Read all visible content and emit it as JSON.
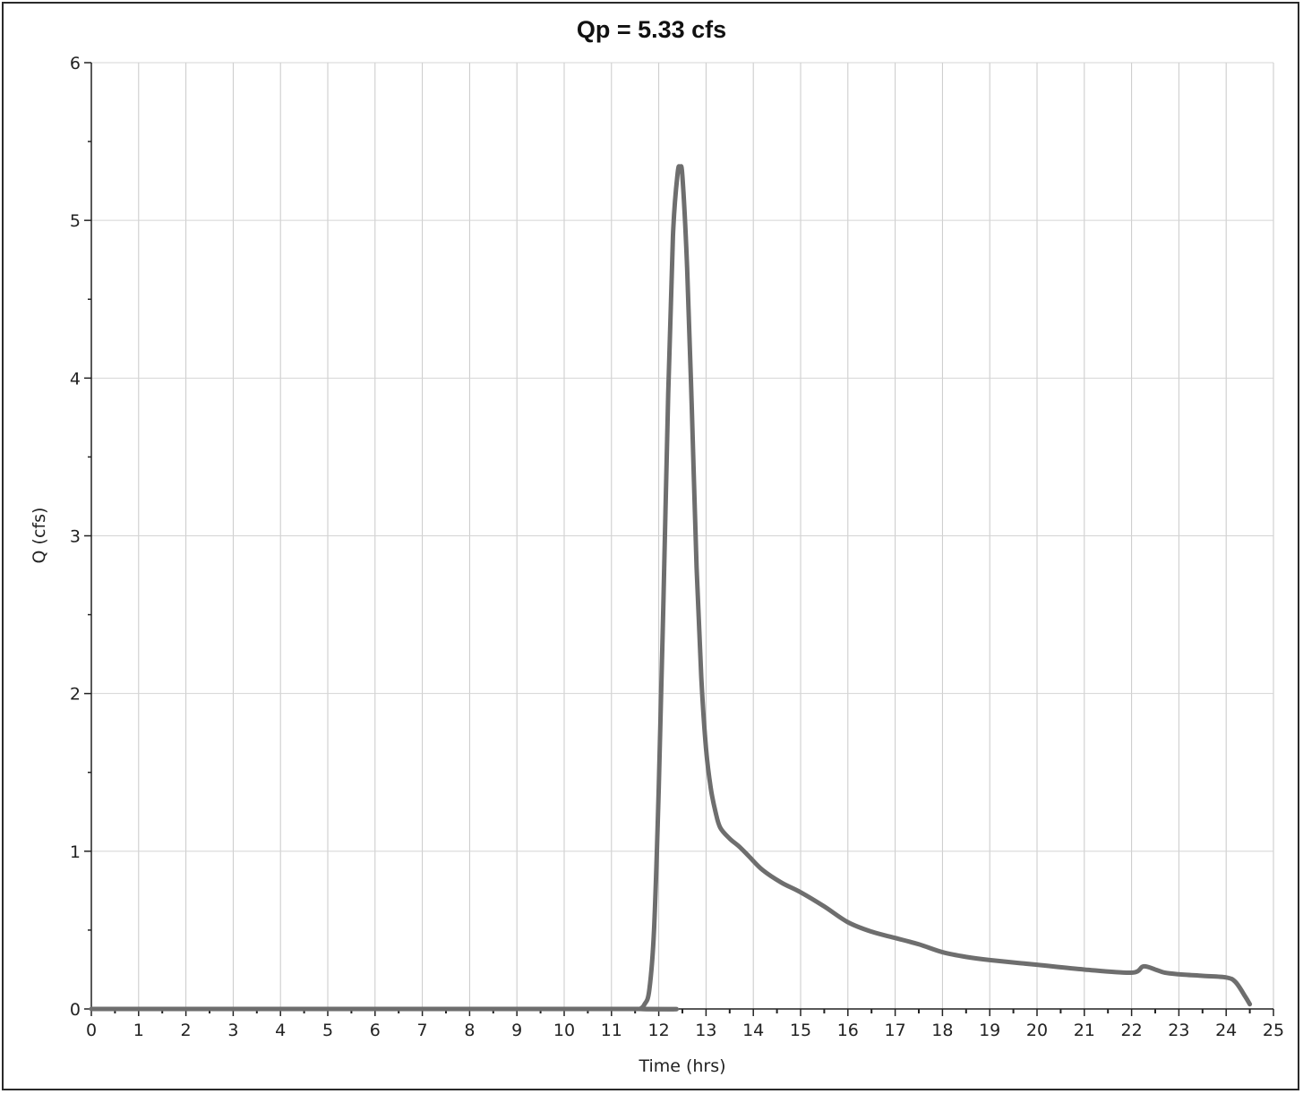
{
  "chart_data": {
    "type": "line",
    "title": "Qp = 5.33 cfs",
    "xlabel": "Time (hrs)",
    "ylabel": "Q (cfs)",
    "xlim": [
      0,
      25
    ],
    "ylim": [
      0,
      6
    ],
    "x_ticks": [
      0,
      1,
      2,
      3,
      4,
      5,
      6,
      7,
      8,
      9,
      10,
      11,
      12,
      13,
      14,
      15,
      16,
      17,
      18,
      19,
      20,
      21,
      22,
      23,
      24,
      25
    ],
    "y_ticks": [
      0,
      1,
      2,
      3,
      4,
      5,
      6
    ],
    "grid": true,
    "legend": "none",
    "series": [
      {
        "color": "#6e6e6e",
        "x": [
          0,
          11.5,
          11.6,
          11.7,
          11.8,
          11.9,
          12.0,
          12.1,
          12.2,
          12.3,
          12.4,
          12.45,
          12.5,
          12.6,
          12.7,
          12.8,
          12.9,
          13.0,
          13.1,
          13.2,
          13.3,
          13.5,
          13.7,
          13.9,
          14.2,
          14.6,
          15.0,
          15.5,
          16.0,
          16.5,
          17.0,
          17.5,
          18.0,
          18.5,
          19.0,
          20.0,
          21.0,
          22.0,
          22.25,
          22.5,
          22.7,
          23.0,
          23.5,
          24.0,
          24.2,
          24.4,
          24.5
        ],
        "values": [
          0,
          0,
          0,
          0.03,
          0.12,
          0.5,
          1.4,
          2.6,
          3.9,
          4.9,
          5.3,
          5.33,
          5.28,
          4.7,
          3.8,
          2.8,
          2.1,
          1.65,
          1.4,
          1.25,
          1.15,
          1.08,
          1.03,
          0.97,
          0.88,
          0.8,
          0.74,
          0.65,
          0.55,
          0.49,
          0.45,
          0.41,
          0.36,
          0.33,
          0.31,
          0.28,
          0.25,
          0.23,
          0.27,
          0.25,
          0.23,
          0.22,
          0.21,
          0.2,
          0.17,
          0.08,
          0.03
        ]
      }
    ]
  }
}
